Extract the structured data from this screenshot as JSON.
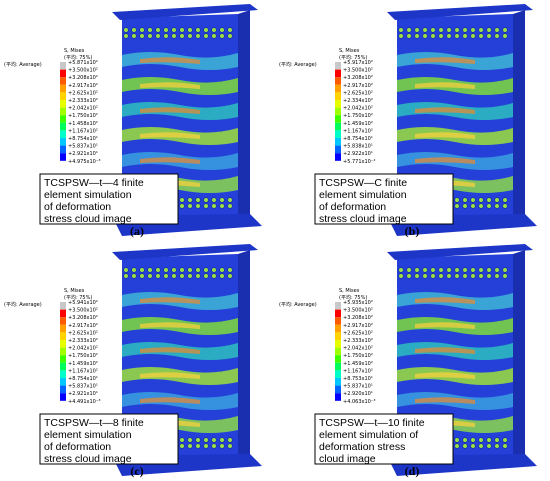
{
  "panels": [
    {
      "label": "(a)",
      "side_note": "(平均: Average)",
      "legend_title": "S, Mises",
      "legend_subtitle": "(平均: 75%)",
      "legend_values": [
        "+5.871x10²",
        "+3.500x10²",
        "+3.208x10²",
        "+2.917x10²",
        "+2.625x10²",
        "+2.333x10²",
        "+2.042x10²",
        "+1.750x10²",
        "+1.458x10²",
        "+1.167x10²",
        "+8.754x10¹",
        "+5.837x10¹",
        "+2.921x10¹",
        "+4.975x10⁻³"
      ],
      "caption": [
        "TCSPSW—t—4 finite",
        "element simulation",
        "of deformation",
        "stress cloud image"
      ]
    },
    {
      "label": "(b)",
      "side_note": "(平均: Average)",
      "legend_title": "S, Mises",
      "legend_subtitle": "(平均: 75%)",
      "legend_values": [
        "+5.917x10²",
        "+3.500x10²",
        "+3.208x10²",
        "+2.917x10²",
        "+2.625x10²",
        "+2.334x10²",
        "+2.042x10²",
        "+1.750x10²",
        "+1.459x10²",
        "+1.167x10²",
        "+8.754x10¹",
        "+5.838x10¹",
        "+2.922x10¹",
        "+5.771x10⁻²"
      ],
      "caption": [
        "TCSPSW—C finite",
        "element simulation",
        "of deformation",
        "stress cloud image"
      ]
    },
    {
      "label": "(c)",
      "side_note": "(平均: Average)",
      "legend_title": "S, Mises",
      "legend_subtitle": "(平均: 75%)",
      "legend_values": [
        "+5.941x10²",
        "+3.500x10²",
        "+3.208x10²",
        "+2.917x10²",
        "+2.625x10²",
        "+2.333x10²",
        "+2.042x10²",
        "+1.750x10²",
        "+1.459x10²",
        "+1.167x10²",
        "+8.754x10¹",
        "+5.837x10¹",
        "+2.921x10¹",
        "+4.491x10⁻³"
      ],
      "caption": [
        "TCSPSW—t—8 finite",
        "element simulation",
        "of deformation",
        "stress cloud image"
      ]
    },
    {
      "label": "(d)",
      "side_note": "(平均: Average)",
      "legend_title": "S, Mises",
      "legend_subtitle": "(平均: 75%)",
      "legend_values": [
        "+5.935x10²",
        "+3.500x10²",
        "+3.208x10²",
        "+2.917x10²",
        "+2.625x10²",
        "+2.333x10²",
        "+2.042x10²",
        "+1.750x10²",
        "+1.459x10²",
        "+1.167x10²",
        "+8.753x10¹",
        "+5.837x10¹",
        "+2.920x10¹",
        "+4.063x10⁻³"
      ],
      "caption": [
        "TCSPSW—t—10 finite",
        "element simulation of",
        "deformation stress",
        "cloud image"
      ]
    }
  ]
}
